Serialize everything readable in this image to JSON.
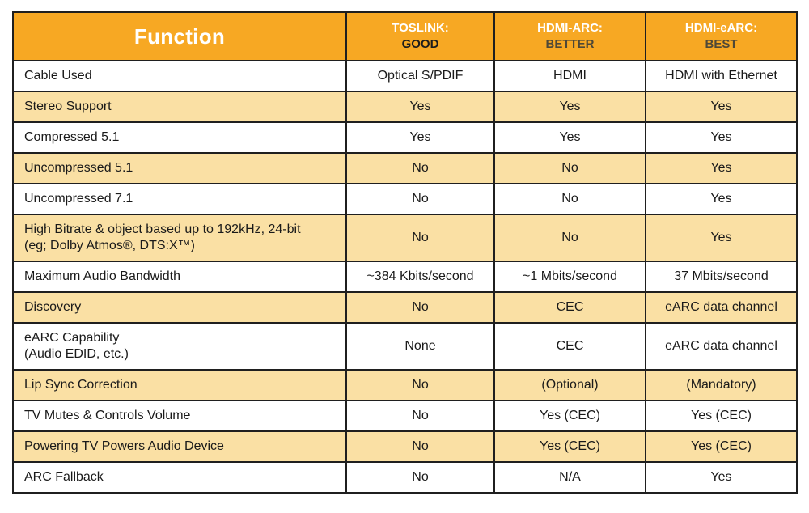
{
  "colors": {
    "header_bg": "#F7A823",
    "alt_row_bg": "#FAE0A4",
    "border": "#1F1F1F",
    "header_text": "#FFFFFF",
    "body_text": "#1A1A1A",
    "rating_good_text": "#1C1C1C",
    "rating_better_best_text": "#4E4837"
  },
  "table": {
    "header": {
      "function_label": "Function",
      "columns": [
        {
          "name": "TOSLINK:",
          "rating": "GOOD"
        },
        {
          "name": "HDMI-ARC:",
          "rating": "BETTER"
        },
        {
          "name": "HDMI-eARC:",
          "rating": "BEST"
        }
      ]
    },
    "rows": [
      {
        "function": "Cable Used",
        "values": [
          "Optical S/PDIF",
          "HDMI",
          "HDMI with Ethernet"
        ]
      },
      {
        "function": "Stereo Support",
        "values": [
          "Yes",
          "Yes",
          "Yes"
        ]
      },
      {
        "function": "Compressed 5.1",
        "values": [
          "Yes",
          "Yes",
          "Yes"
        ]
      },
      {
        "function": "Uncompressed 5.1",
        "values": [
          "No",
          "No",
          "Yes"
        ]
      },
      {
        "function": "Uncompressed 7.1",
        "values": [
          "No",
          "No",
          "Yes"
        ]
      },
      {
        "function": "High Bitrate & object based up to 192kHz, 24-bit\n(eg; Dolby Atmos®, DTS:X™)",
        "values": [
          "No",
          "No",
          "Yes"
        ]
      },
      {
        "function": "Maximum Audio Bandwidth",
        "values": [
          "~384 Kbits/second",
          "~1 Mbits/second",
          "37 Mbits/second"
        ]
      },
      {
        "function": "Discovery",
        "values": [
          "No",
          "CEC",
          "eARC data channel"
        ]
      },
      {
        "function": "eARC Capability\n(Audio EDID, etc.)",
        "values": [
          "None",
          "CEC",
          "eARC data channel"
        ]
      },
      {
        "function": "Lip Sync Correction",
        "values": [
          "No",
          "(Optional)",
          "(Mandatory)"
        ]
      },
      {
        "function": "TV Mutes & Controls Volume",
        "values": [
          "No",
          "Yes (CEC)",
          "Yes (CEC)"
        ]
      },
      {
        "function": "Powering TV Powers Audio Device",
        "values": [
          "No",
          "Yes (CEC)",
          "Yes (CEC)"
        ]
      },
      {
        "function": "ARC Fallback",
        "values": [
          "No",
          "N/A",
          "Yes"
        ]
      }
    ]
  }
}
